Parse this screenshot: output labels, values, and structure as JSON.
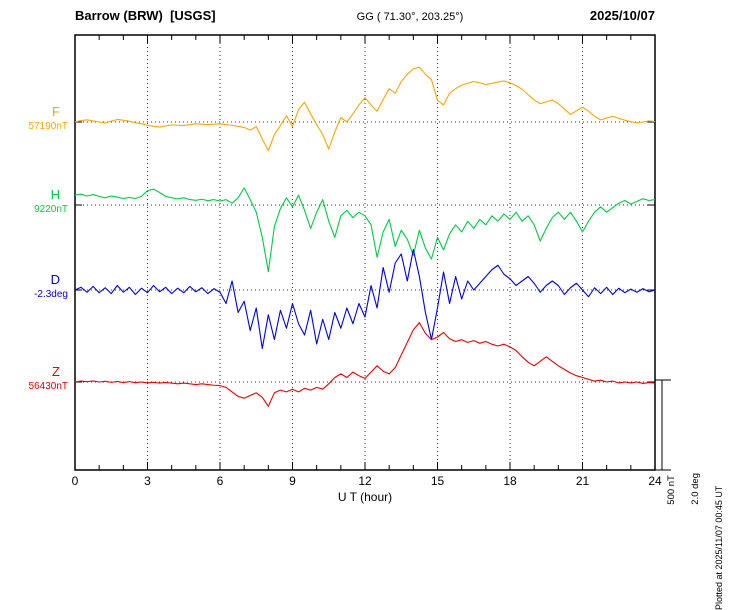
{
  "header": {
    "station_title": "Barrow (BRW)  [USGS]",
    "coordinates": "GG ( 71.30°, 203.25°)",
    "date": "2025/10/07"
  },
  "x_axis": {
    "label": "U T (hour)",
    "tick_labels": [
      "0",
      "3",
      "6",
      "9",
      "12",
      "15",
      "18",
      "21",
      "24"
    ],
    "hours_min": 0,
    "hours_max": 24
  },
  "scale_bar": {
    "nT_label": "500 nT",
    "deg_label": "2.0 deg"
  },
  "plotted_note": "Plotted at 2025/11/07 00:45 UT",
  "chart_data": {
    "type": "line",
    "title": "Barrow (BRW) [USGS] magnetogram, 2025/10/07",
    "x_unit": "UT hour",
    "x_range": [
      0,
      24
    ],
    "x_step_hours": 0.25,
    "grid": "dotted vertical every 3 h, dotted horizontal at each trace baseline",
    "scale": {
      "nT_per_division": 500,
      "deg_per_division": 2.0
    },
    "series": [
      {
        "name": "F",
        "units": "nT",
        "baseline_label": "57190nT",
        "baseline_value": 57190,
        "color": "#FFA500",
        "offsets_from_baseline": [
          0,
          8,
          12,
          6,
          0,
          -6,
          5,
          14,
          10,
          4,
          -4,
          -10,
          -18,
          -24,
          -28,
          -22,
          -16,
          -18,
          -20,
          -14,
          -10,
          -12,
          -14,
          -12,
          -10,
          -14,
          -18,
          -24,
          -30,
          -45,
          -25,
          -95,
          -160,
          -70,
          -20,
          35,
          -25,
          70,
          110,
          45,
          -15,
          -70,
          -150,
          -55,
          25,
          0,
          45,
          95,
          135,
          95,
          60,
          125,
          185,
          160,
          225,
          265,
          295,
          305,
          265,
          235,
          120,
          95,
          160,
          185,
          205,
          215,
          225,
          218,
          208,
          215,
          222,
          228,
          218,
          202,
          182,
          152,
          122,
          102,
          112,
          122,
          102,
          72,
          42,
          62,
          82,
          60,
          32,
          12,
          22,
          32,
          20,
          10,
          2,
          -4,
          0,
          6,
          2
        ]
      },
      {
        "name": "H",
        "units": "nT",
        "baseline_label": "9220nT",
        "baseline_value": 9220,
        "color": "#00CC44",
        "offsets_from_baseline": [
          55,
          60,
          50,
          58,
          48,
          40,
          50,
          44,
          36,
          42,
          36,
          48,
          80,
          88,
          70,
          48,
          40,
          34,
          40,
          30,
          26,
          32,
          24,
          30,
          22,
          30,
          10,
          40,
          95,
          30,
          -40,
          -180,
          -370,
          -120,
          -20,
          40,
          -10,
          55,
          -30,
          -130,
          -40,
          30,
          -90,
          -180,
          -60,
          -30,
          -70,
          -40,
          -60,
          -110,
          -290,
          -150,
          -80,
          -230,
          -140,
          -190,
          -280,
          -140,
          -240,
          -300,
          -180,
          -250,
          -160,
          -110,
          -150,
          -90,
          -130,
          -80,
          -110,
          -60,
          -90,
          -50,
          -80,
          -40,
          -90,
          -60,
          -110,
          -200,
          -130,
          -70,
          -40,
          -80,
          -40,
          -90,
          -150,
          -90,
          -40,
          -10,
          -40,
          -15,
          10,
          25,
          5,
          20,
          35,
          25,
          30
        ]
      },
      {
        "name": "D",
        "units": "deg",
        "baseline_label": "-2.3deg",
        "baseline_value": -2.3,
        "color": "#0000EE",
        "offsets_from_baseline": [
          0,
          0.06,
          -0.05,
          0.08,
          -0.06,
          0.05,
          -0.08,
          0.1,
          -0.05,
          0.06,
          -0.1,
          0.04,
          -0.06,
          0.1,
          -0.04,
          0.06,
          -0.08,
          0.04,
          -0.06,
          0.08,
          -0.04,
          0.05,
          -0.08,
          0.03,
          -0.05,
          -0.3,
          0.2,
          -0.5,
          -0.25,
          -0.9,
          -0.4,
          -1.3,
          -0.55,
          -1.1,
          -0.45,
          -0.85,
          -0.3,
          -0.75,
          -1.0,
          -0.45,
          -1.2,
          -0.65,
          -1.1,
          -0.5,
          -0.85,
          -0.4,
          -0.75,
          -0.3,
          -0.6,
          0.1,
          -0.4,
          0.5,
          -0.05,
          0.6,
          0.8,
          0.2,
          0.9,
          0.3,
          -0.5,
          -1.1,
          -0.4,
          0.4,
          -0.3,
          0.3,
          -0.2,
          0.2,
          0,
          0.15,
          0.3,
          0.45,
          0.55,
          0.35,
          0.25,
          0.1,
          0.2,
          0.3,
          0.15,
          -0.05,
          0.1,
          0.2,
          0.1,
          -0.1,
          0.05,
          0.15,
          0,
          -0.15,
          0.05,
          -0.08,
          0.06,
          -0.1,
          0.04,
          -0.06,
          0.02,
          -0.05,
          0.03,
          -0.04,
          0
        ]
      },
      {
        "name": "Z",
        "units": "nT",
        "baseline_label": "56430nT",
        "baseline_value": 56430,
        "color": "#EE0000",
        "offsets_from_baseline": [
          0,
          5,
          2,
          6,
          0,
          4,
          -2,
          3,
          -3,
          2,
          -4,
          0,
          -5,
          -2,
          -6,
          -3,
          -6,
          -10,
          -6,
          -10,
          -14,
          -10,
          -14,
          -18,
          -20,
          -30,
          -55,
          -80,
          -90,
          -75,
          -60,
          -85,
          -135,
          -60,
          -45,
          -55,
          -40,
          -55,
          -35,
          -45,
          -30,
          -40,
          -10,
          25,
          45,
          25,
          55,
          35,
          20,
          55,
          90,
          60,
          45,
          80,
          150,
          220,
          290,
          330,
          270,
          235,
          250,
          275,
          240,
          225,
          235,
          220,
          230,
          215,
          225,
          210,
          200,
          210,
          195,
          175,
          140,
          110,
          90,
          115,
          140,
          115,
          90,
          70,
          50,
          35,
          25,
          15,
          5,
          10,
          0,
          5,
          -5,
          0,
          -5,
          0,
          -8,
          -3,
          -6
        ]
      }
    ]
  }
}
